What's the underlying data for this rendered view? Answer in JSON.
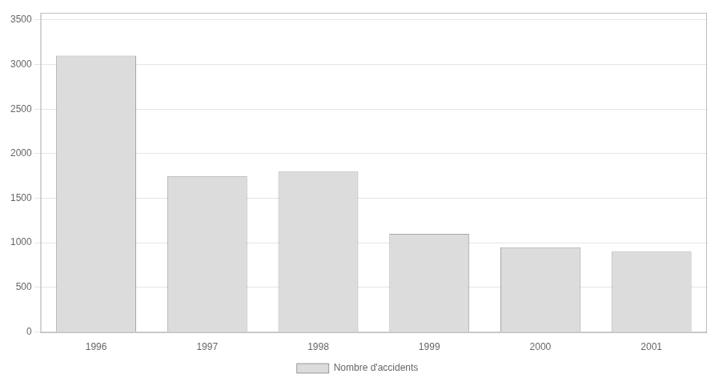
{
  "chart_data": {
    "type": "bar",
    "categories": [
      "1996",
      "1997",
      "1998",
      "1999",
      "2000",
      "2001"
    ],
    "series": [
      {
        "name": "Nombre d'accidents",
        "color": "#dcdcdc",
        "values": [
          3100,
          1750,
          1800,
          1100,
          950,
          900
        ]
      }
    ],
    "ylim": [
      -10,
      3580
    ],
    "yticks": [
      0,
      500,
      1000,
      1500,
      2000,
      2500,
      3000,
      3500
    ],
    "grid": true,
    "legend": "bottom"
  }
}
